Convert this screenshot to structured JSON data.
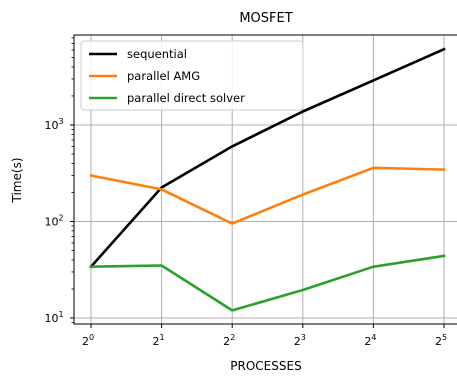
{
  "chart_data": {
    "type": "line",
    "title": "MOSFET",
    "xlabel": "PROCESSES",
    "ylabel": "Time(s)",
    "x": [
      1,
      2,
      4,
      8,
      16,
      32
    ],
    "x_tick_labels": [
      {
        "base": "2",
        "exp": "0"
      },
      {
        "base": "2",
        "exp": "1"
      },
      {
        "base": "2",
        "exp": "2"
      },
      {
        "base": "2",
        "exp": "3"
      },
      {
        "base": "2",
        "exp": "4"
      },
      {
        "base": "2",
        "exp": "5"
      }
    ],
    "x_scale": "log2",
    "y_scale": "log10",
    "y_tick_labels": [
      {
        "base": "10",
        "exp": "1",
        "value": 10
      },
      {
        "base": "10",
        "exp": "2",
        "value": 100
      },
      {
        "base": "10",
        "exp": "3",
        "value": 1000
      }
    ],
    "grid": true,
    "legend_position": "top-left",
    "series": [
      {
        "name": "sequential",
        "color": "#000000",
        "values": [
          34,
          225,
          600,
          1380,
          2900,
          6100
        ]
      },
      {
        "name": "parallel AMG",
        "color": "#ff7f0e",
        "values": [
          300,
          215,
          95,
          190,
          360,
          345
        ]
      },
      {
        "name": "parallel direct solver",
        "color": "#2ca02c",
        "values": [
          34,
          35,
          12,
          19.5,
          34,
          44
        ]
      }
    ]
  }
}
